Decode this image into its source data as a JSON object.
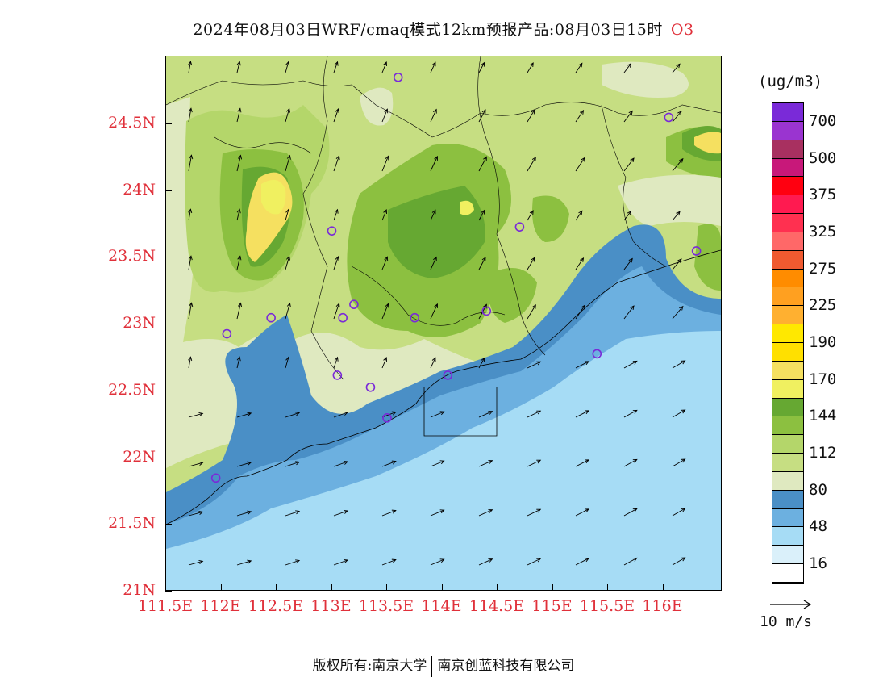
{
  "title": {
    "text": "2024年08月03日WRF/cmaq模式12km预报产品:08月03日15时",
    "pollutant": "O3"
  },
  "axes": {
    "lat_labels": [
      "24.5N",
      "24N",
      "23.5N",
      "23N",
      "22.5N",
      "22N",
      "21.5N",
      "21N"
    ],
    "lon_labels": [
      "111.5E",
      "112E",
      "112.5E",
      "113E",
      "113.5E",
      "114E",
      "114.5E",
      "115E",
      "115.5E",
      "116E"
    ]
  },
  "legend": {
    "units": "(ug/m3)",
    "colors": [
      "#7a2ad8",
      "#9a34d0",
      "#a83060",
      "#c8187a",
      "#ff0010",
      "#ff1a50",
      "#ff3050",
      "#ff6868",
      "#f05a30",
      "#ff8c00",
      "#ffa020",
      "#ffb030",
      "#ffe800",
      "#ffe000",
      "#f5e060",
      "#f0f060",
      "#66a832",
      "#8cc040",
      "#b4d66a",
      "#c6de82",
      "#dfe9c0",
      "#4a8fc6",
      "#6cb0e0",
      "#a6dcf5",
      "#daf0fa",
      "#ffffff"
    ],
    "labels": [
      "700",
      "500",
      "375",
      "325",
      "275",
      "225",
      "190",
      "170",
      "144",
      "112",
      "80",
      "48",
      "16"
    ]
  },
  "wind_reference": {
    "label": "10 m/s"
  },
  "stations": [
    {
      "lon": 113.6,
      "lat": 24.85
    },
    {
      "lon": 116.05,
      "lat": 24.55
    },
    {
      "lon": 116.3,
      "lat": 23.55
    },
    {
      "lon": 113.0,
      "lat": 23.7
    },
    {
      "lon": 114.7,
      "lat": 23.73
    },
    {
      "lon": 112.45,
      "lat": 23.05
    },
    {
      "lon": 113.1,
      "lat": 23.05
    },
    {
      "lon": 113.2,
      "lat": 23.15
    },
    {
      "lon": 113.75,
      "lat": 23.05
    },
    {
      "lon": 114.4,
      "lat": 23.1
    },
    {
      "lon": 112.05,
      "lat": 22.93
    },
    {
      "lon": 113.05,
      "lat": 22.62
    },
    {
      "lon": 113.35,
      "lat": 22.53
    },
    {
      "lon": 114.05,
      "lat": 22.62
    },
    {
      "lon": 115.4,
      "lat": 22.78
    },
    {
      "lon": 113.5,
      "lat": 22.3
    },
    {
      "lon": 111.95,
      "lat": 21.85
    }
  ],
  "copyright": {
    "prefix": "版权所有:",
    "org1": "南京大学",
    "org2": "南京创蓝科技有限公司"
  }
}
